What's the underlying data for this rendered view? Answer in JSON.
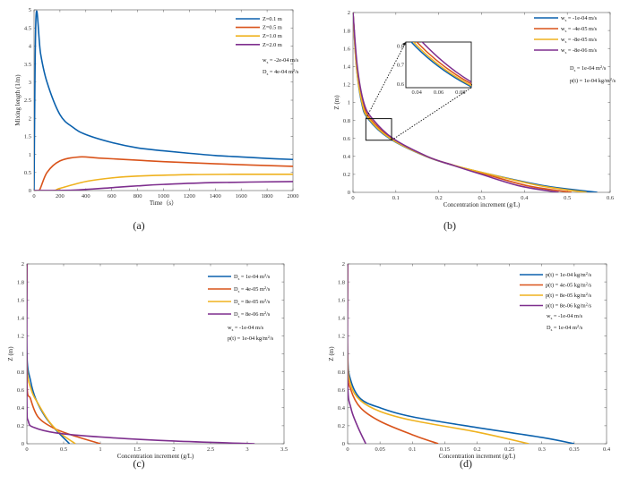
{
  "colors": {
    "blue": "#0b61ad",
    "orange": "#d9531a",
    "yellow": "#efb21f",
    "purple": "#7e2f8e"
  },
  "chart_data": [
    {
      "type": "line",
      "caption": "(a)",
      "xlabel": "Time（s）",
      "ylabel": "Mixing length (1/m)",
      "xlim": [
        0,
        2000
      ],
      "ylim": [
        0,
        5
      ],
      "xticks": [
        0,
        200,
        400,
        600,
        800,
        1000,
        1200,
        1400,
        1600,
        1800,
        2000
      ],
      "yticks": [
        0,
        0.5,
        1,
        1.5,
        2,
        2.5,
        3,
        3.5,
        4,
        4.5,
        5
      ],
      "legend_position": "top-right",
      "series": [
        {
          "name": [
            [
              "Z=0.1 m",
              ""
            ]
          ],
          "color": "blue",
          "points": [
            [
              0,
              0
            ],
            [
              15,
              4.8
            ],
            [
              50,
              3.8
            ],
            [
              100,
              3.0
            ],
            [
              200,
              2.1
            ],
            [
              300,
              1.75
            ],
            [
              400,
              1.55
            ],
            [
              600,
              1.33
            ],
            [
              800,
              1.18
            ],
            [
              1000,
              1.1
            ],
            [
              1200,
              1.03
            ],
            [
              1400,
              0.97
            ],
            [
              1600,
              0.93
            ],
            [
              1800,
              0.89
            ],
            [
              2000,
              0.86
            ]
          ]
        },
        {
          "name": [
            [
              "Z=0.5 m",
              ""
            ]
          ],
          "color": "orange",
          "points": [
            [
              0,
              0
            ],
            [
              40,
              0
            ],
            [
              100,
              0.5
            ],
            [
              200,
              0.82
            ],
            [
              350,
              0.93
            ],
            [
              500,
              0.9
            ],
            [
              800,
              0.84
            ],
            [
              1000,
              0.8
            ],
            [
              1400,
              0.74
            ],
            [
              2000,
              0.67
            ]
          ]
        },
        {
          "name": [
            [
              "Z=1.0 m",
              ""
            ]
          ],
          "color": "yellow",
          "points": [
            [
              0,
              0
            ],
            [
              150,
              0
            ],
            [
              200,
              0.06
            ],
            [
              400,
              0.25
            ],
            [
              600,
              0.35
            ],
            [
              800,
              0.4
            ],
            [
              1200,
              0.44
            ],
            [
              1600,
              0.45
            ],
            [
              2000,
              0.45
            ]
          ]
        },
        {
          "name": [
            [
              "Z=2.0 m",
              ""
            ]
          ],
          "color": "purple",
          "points": [
            [
              0,
              0
            ],
            [
              300,
              0.01
            ],
            [
              600,
              0.08
            ],
            [
              800,
              0.13
            ],
            [
              1000,
              0.17
            ],
            [
              1400,
              0.22
            ],
            [
              2000,
              0.25
            ]
          ]
        }
      ],
      "annotations": [
        [
          [
            "w",
            ""
          ],
          [
            "s",
            "sub"
          ],
          [
            " = -2e-04 m/s",
            ""
          ]
        ],
        [
          [
            "D",
            ""
          ],
          [
            "s",
            "sub"
          ],
          [
            " = 4e-04 m",
            ""
          ],
          [
            "2",
            "sup"
          ],
          [
            "/s",
            ""
          ]
        ]
      ]
    },
    {
      "type": "line",
      "caption": "(b)",
      "xlabel": "Concentration increment (g/L)",
      "ylabel": "Z (m)",
      "xlim": [
        0,
        0.6
      ],
      "ylim": [
        0,
        2
      ],
      "xticks": [
        0,
        0.1,
        0.2,
        0.3,
        0.4,
        0.5,
        0.6
      ],
      "yticks": [
        0,
        0.2,
        0.4,
        0.6,
        0.8,
        1,
        1.2,
        1.4,
        1.6,
        1.8,
        2
      ],
      "legend_position": "top-right",
      "series": [
        {
          "name": [
            [
              "w",
              ""
            ],
            [
              "s",
              "sub"
            ],
            [
              " = -1e-04 m/s",
              ""
            ]
          ],
          "color": "blue",
          "points": [
            [
              0.57,
              0
            ],
            [
              0.45,
              0.07
            ],
            [
              0.32,
              0.2
            ],
            [
              0.235,
              0.3
            ],
            [
              0.17,
              0.4
            ],
            [
              0.085,
              0.6
            ],
            [
              0.035,
              0.82
            ],
            [
              0.02,
              1.0
            ],
            [
              0.008,
              1.4
            ],
            [
              0,
              2
            ]
          ]
        },
        {
          "name": [
            [
              "w",
              ""
            ],
            [
              "s",
              "sub"
            ],
            [
              " = -4e-05 m/s",
              ""
            ]
          ],
          "color": "orange",
          "points": [
            [
              0.51,
              0
            ],
            [
              0.41,
              0.07
            ],
            [
              0.31,
              0.2
            ],
            [
              0.235,
              0.3
            ],
            [
              0.172,
              0.4
            ],
            [
              0.09,
              0.6
            ],
            [
              0.04,
              0.82
            ],
            [
              0.023,
              1.0
            ],
            [
              0.009,
              1.4
            ],
            [
              0,
              2
            ]
          ]
        },
        {
          "name": [
            [
              "w",
              ""
            ],
            [
              "s",
              "sub"
            ],
            [
              " = -8e-05 m/s",
              ""
            ]
          ],
          "color": "yellow",
          "points": [
            [
              0.545,
              0
            ],
            [
              0.44,
              0.07
            ],
            [
              0.32,
              0.2
            ],
            [
              0.236,
              0.3
            ],
            [
              0.171,
              0.4
            ],
            [
              0.087,
              0.6
            ],
            [
              0.037,
              0.82
            ],
            [
              0.021,
              1.0
            ],
            [
              0.008,
              1.4
            ],
            [
              0,
              2
            ]
          ]
        },
        {
          "name": [
            [
              "w",
              ""
            ],
            [
              "s",
              "sub"
            ],
            [
              " = -8e-06 m/s",
              ""
            ]
          ],
          "color": "purple",
          "points": [
            [
              0.48,
              0
            ],
            [
              0.39,
              0.07
            ],
            [
              0.3,
              0.2
            ],
            [
              0.234,
              0.3
            ],
            [
              0.173,
              0.4
            ],
            [
              0.093,
              0.6
            ],
            [
              0.045,
              0.82
            ],
            [
              0.025,
              1.0
            ],
            [
              0.01,
              1.4
            ],
            [
              0,
              2
            ]
          ]
        }
      ],
      "annotations": [
        [
          [
            "D",
            ""
          ],
          [
            "s",
            "sub"
          ],
          [
            " = 1e-04 m",
            ""
          ],
          [
            "2",
            "sup"
          ],
          [
            "/s",
            ""
          ]
        ],
        [
          [
            "p(t) = 1e-04 kg/m",
            ""
          ],
          [
            "2",
            "sup"
          ],
          [
            "/s",
            ""
          ]
        ]
      ],
      "inset": {
        "xlim": [
          0.03,
          0.09
        ],
        "ylim": [
          0.58,
          0.82
        ],
        "xticks": [
          0.04,
          0.06,
          0.08
        ],
        "yticks": [
          0.6,
          0.7,
          0.8
        ]
      }
    },
    {
      "type": "line",
      "caption": "(c)",
      "xlabel": "Concentration increment (g/L)",
      "ylabel": "Z (m)",
      "xlim": [
        0,
        3.5
      ],
      "ylim": [
        0,
        2
      ],
      "xticks": [
        0,
        0.5,
        1,
        1.5,
        2,
        2.5,
        3,
        3.5
      ],
      "yticks": [
        0,
        0.2,
        0.4,
        0.6,
        0.8,
        1,
        1.2,
        1.4,
        1.6,
        1.8,
        2
      ],
      "legend_position": "top-right",
      "series": [
        {
          "name": [
            [
              "D",
              ""
            ],
            [
              "s",
              "sub"
            ],
            [
              " = 1e-04 m",
              ""
            ],
            [
              "2",
              "sup"
            ],
            [
              "/s",
              ""
            ]
          ],
          "color": "blue",
          "points": [
            [
              0.58,
              0
            ],
            [
              0.4,
              0.15
            ],
            [
              0.25,
              0.3
            ],
            [
              0.12,
              0.5
            ],
            [
              0.05,
              0.7
            ],
            [
              0,
              1.0
            ],
            [
              0,
              2
            ]
          ]
        },
        {
          "name": [
            [
              "D",
              ""
            ],
            [
              "s",
              "sub"
            ],
            [
              " = 4e-05 m",
              ""
            ],
            [
              "2",
              "sup"
            ],
            [
              "/s",
              ""
            ]
          ],
          "color": "orange",
          "points": [
            [
              1.0,
              0
            ],
            [
              0.6,
              0.1
            ],
            [
              0.35,
              0.18
            ],
            [
              0.15,
              0.3
            ],
            [
              0.05,
              0.5
            ],
            [
              0,
              0.7
            ],
            [
              0,
              2
            ]
          ]
        },
        {
          "name": [
            [
              "D",
              ""
            ],
            [
              "s",
              "sub"
            ],
            [
              " = 8e-05 m",
              ""
            ],
            [
              "2",
              "sup"
            ],
            [
              "/s",
              ""
            ]
          ],
          "color": "yellow",
          "points": [
            [
              0.66,
              0
            ],
            [
              0.45,
              0.12
            ],
            [
              0.3,
              0.25
            ],
            [
              0.15,
              0.45
            ],
            [
              0.06,
              0.6
            ],
            [
              0,
              0.9
            ],
            [
              0,
              2
            ]
          ]
        },
        {
          "name": [
            [
              "D",
              ""
            ],
            [
              "s",
              "sub"
            ],
            [
              " = 8e-06 m",
              ""
            ],
            [
              "2",
              "sup"
            ],
            [
              "/s",
              ""
            ]
          ],
          "color": "purple",
          "points": [
            [
              3.1,
              0
            ],
            [
              2.0,
              0.03
            ],
            [
              1.0,
              0.075
            ],
            [
              0.4,
              0.12
            ],
            [
              0.1,
              0.18
            ],
            [
              0.02,
              0.25
            ],
            [
              0,
              0.5
            ],
            [
              0,
              2
            ]
          ]
        }
      ],
      "annotations": [
        [
          [
            "w",
            ""
          ],
          [
            "s",
            "sub"
          ],
          [
            " = -1e-04 m/s",
            ""
          ]
        ],
        [
          [
            "p(t) = 1e-04 kg/m",
            ""
          ],
          [
            "2",
            "sup"
          ],
          [
            "/s",
            ""
          ]
        ]
      ]
    },
    {
      "type": "line",
      "caption": "(d)",
      "xlabel": "Concentration increment (g/L)",
      "ylabel": "Z (m)",
      "xlim": [
        0,
        0.4
      ],
      "ylim": [
        0,
        2
      ],
      "xticks": [
        0,
        0.05,
        0.1,
        0.15,
        0.2,
        0.25,
        0.3,
        0.35,
        0.4
      ],
      "yticks": [
        0,
        0.2,
        0.4,
        0.6,
        0.8,
        1,
        1.2,
        1.4,
        1.6,
        1.8,
        2
      ],
      "legend_position": "top-right",
      "series": [
        {
          "name": [
            [
              "p(t) = 1e-04 kg/m",
              ""
            ],
            [
              "2",
              "sup"
            ],
            [
              "/s",
              ""
            ]
          ],
          "color": "blue",
          "points": [
            [
              0.35,
              0
            ],
            [
              0.3,
              0.07
            ],
            [
              0.2,
              0.18
            ],
            [
              0.1,
              0.3
            ],
            [
              0.05,
              0.4
            ],
            [
              0.02,
              0.5
            ],
            [
              0.005,
              0.7
            ],
            [
              0,
              1.0
            ],
            [
              0,
              2
            ]
          ]
        },
        {
          "name": [
            [
              "p(t) = 4e-05 kg/m",
              ""
            ],
            [
              "2",
              "sup"
            ],
            [
              "/s",
              ""
            ]
          ],
          "color": "orange",
          "points": [
            [
              0.14,
              0
            ],
            [
              0.1,
              0.1
            ],
            [
              0.05,
              0.25
            ],
            [
              0.02,
              0.4
            ],
            [
              0.005,
              0.6
            ],
            [
              0,
              0.85
            ],
            [
              0,
              2
            ]
          ]
        },
        {
          "name": [
            [
              "p(t) = 8e-05 kg/m",
              ""
            ],
            [
              "2",
              "sup"
            ],
            [
              "/s",
              ""
            ]
          ],
          "color": "yellow",
          "points": [
            [
              0.28,
              0
            ],
            [
              0.2,
              0.13
            ],
            [
              0.1,
              0.26
            ],
            [
              0.05,
              0.36
            ],
            [
              0.02,
              0.48
            ],
            [
              0.005,
              0.65
            ],
            [
              0,
              0.95
            ],
            [
              0,
              2
            ]
          ]
        },
        {
          "name": [
            [
              "p(t) = 8e-06 kg/m",
              ""
            ],
            [
              "2",
              "sup"
            ],
            [
              "/s",
              ""
            ]
          ],
          "color": "purple",
          "points": [
            [
              0.028,
              0
            ],
            [
              0.015,
              0.2
            ],
            [
              0.005,
              0.4
            ],
            [
              0,
              0.7
            ],
            [
              0,
              2
            ]
          ]
        }
      ],
      "annotations": [
        [
          [
            "w",
            ""
          ],
          [
            "s",
            "sub"
          ],
          [
            " = -1e-04 m/s",
            ""
          ]
        ],
        [
          [
            "D",
            ""
          ],
          [
            "s",
            "sub"
          ],
          [
            " = 1e-04 m",
            ""
          ],
          [
            "2",
            "sup"
          ],
          [
            "/s",
            ""
          ]
        ]
      ]
    }
  ]
}
